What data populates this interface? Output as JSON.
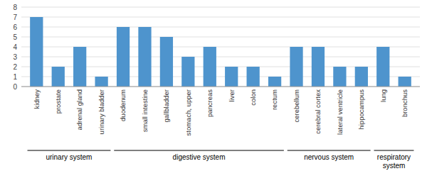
{
  "chart_data": {
    "type": "bar",
    "categories": [
      "kidney",
      "prostate",
      "adrenal gland",
      "urinary bladder",
      "duodenum",
      "small intestine",
      "gallbladder",
      "stomach, upper",
      "pancreas",
      "liver",
      "colon",
      "rectum",
      "cerebellum",
      "cerebral cortex",
      "lateral ventricle",
      "hippocampus",
      "lung",
      "bronchus"
    ],
    "values": [
      7,
      2,
      4,
      1,
      6,
      6,
      5,
      3,
      4,
      2,
      2,
      1,
      4,
      4,
      2,
      2,
      4,
      1
    ],
    "color": "#4e94cd",
    "ylim": [
      0,
      8
    ],
    "yticks": [
      0,
      1,
      2,
      3,
      4,
      5,
      6,
      7,
      8
    ],
    "grid": true,
    "groups": [
      {
        "label": "urinary system",
        "span": [
          0,
          3
        ]
      },
      {
        "label": "digestive system",
        "span": [
          4,
          11
        ]
      },
      {
        "label": "nervous system",
        "span": [
          12,
          15
        ]
      },
      {
        "label": "respiratory\nsystem",
        "span": [
          16,
          17
        ]
      }
    ]
  }
}
